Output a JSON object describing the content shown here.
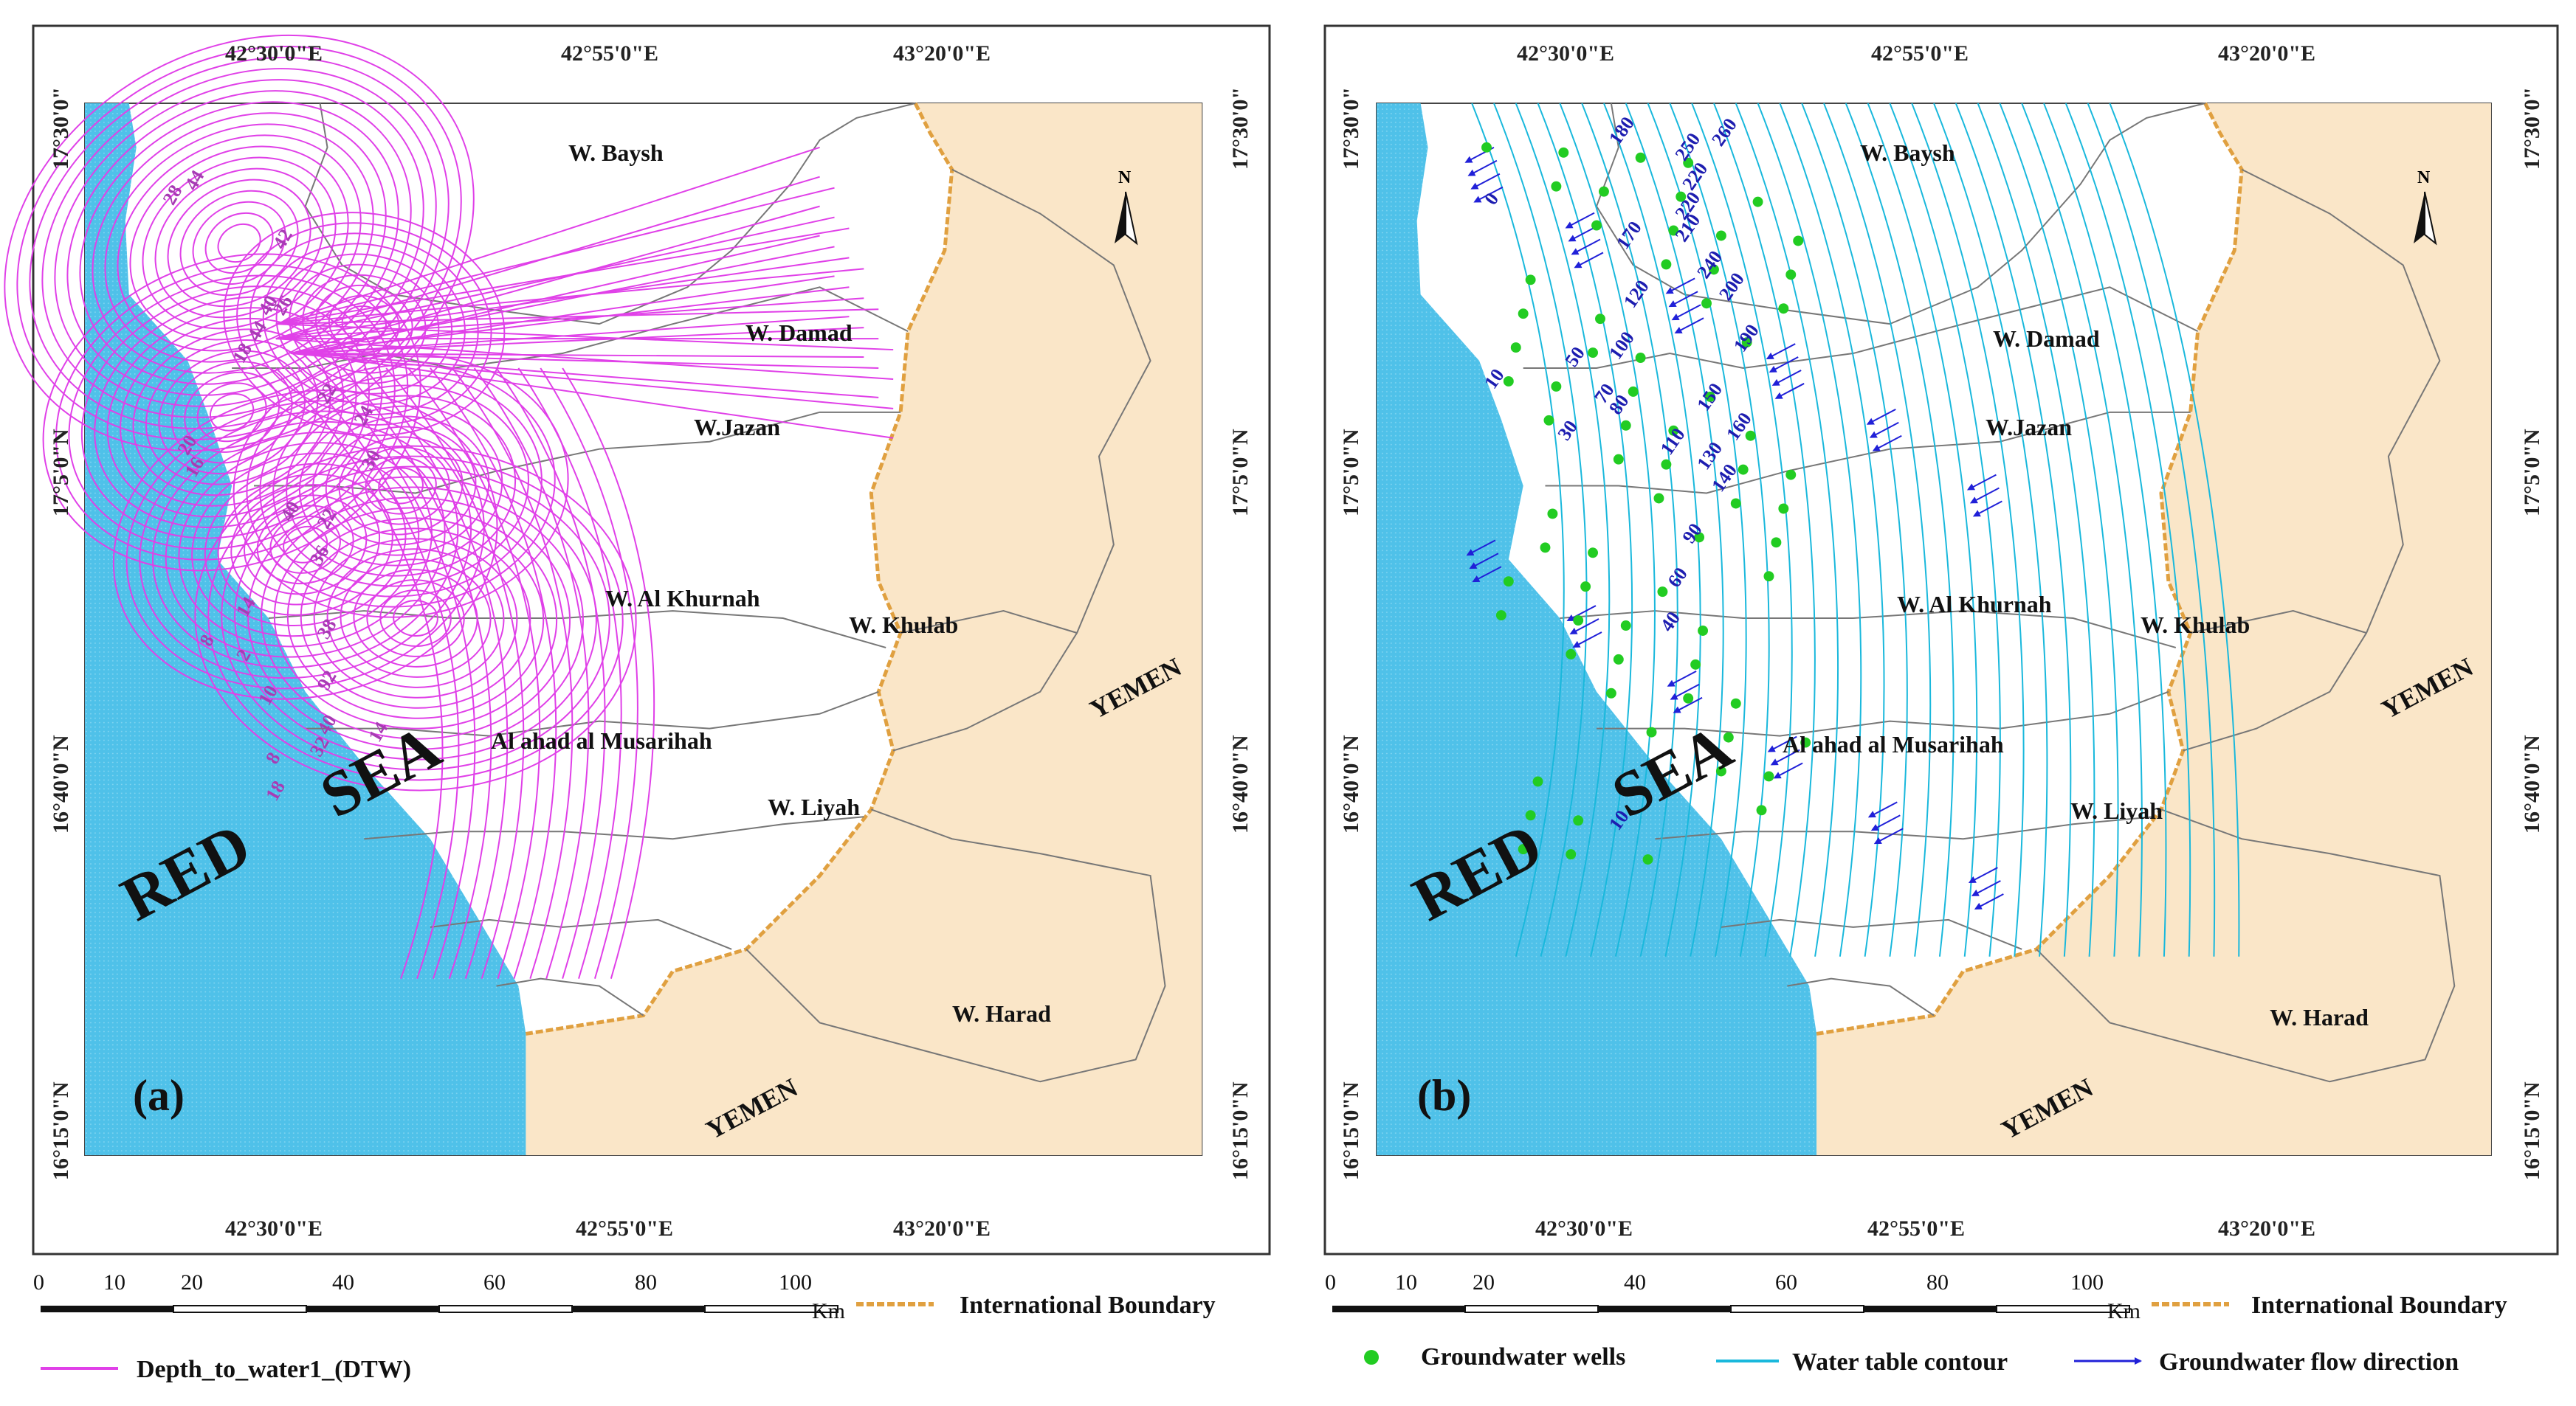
{
  "map": {
    "panels": [
      {
        "id": "a",
        "label": "(a)",
        "top_longitudes": [
          "42°30'0\"E",
          "42°55'0\"E",
          "43°20'0\"E"
        ],
        "bottom_longitudes": [
          "42°30'0\"E",
          "42°55'0\"E",
          "43°20'0\"E"
        ],
        "left_latitudes": [
          "17°30'0\"",
          "17°5'0\"N",
          "16°40'0\"N",
          "16°15'0\"N"
        ],
        "right_latitudes": [
          "17°30'0\"",
          "17°5'0\"N",
          "16°40'0\"N",
          "16°15'0\"N"
        ],
        "contour_labels": [
          "28",
          "44",
          "42",
          "26",
          "40",
          "44",
          "18",
          "22",
          "24",
          "20",
          "16",
          "30",
          "40",
          "22",
          "36",
          "8",
          "14",
          "2",
          "38",
          "92",
          "10",
          "40",
          "14",
          "32",
          "8",
          "18"
        ],
        "wadis": [
          "W. Baysh",
          "W. Damad",
          "W.Jazan",
          "W. Al Khurnah",
          "W. Khulab",
          "Al ahad al Musarihah",
          "W. Liyah",
          "W. Harad"
        ],
        "sea_words": [
          "RED",
          "SEA"
        ],
        "country": "YEMEN",
        "country_bottom": "YEMEN",
        "north_arrow": "N"
      },
      {
        "id": "b",
        "label": "(b)",
        "top_longitudes": [
          "42°30'0\"E",
          "42°55'0\"E",
          "43°20'0\"E"
        ],
        "bottom_longitudes": [
          "42°30'0\"E",
          "42°55'0\"E",
          "43°20'0\"E"
        ],
        "left_latitudes": [
          "17°30'0\"",
          "17°5'0\"N",
          "16°40'0\"N",
          "16°15'0\"N"
        ],
        "right_latitudes": [
          "17°30'0\"",
          "17°5'0\"N",
          "16°40'0\"N",
          "16°15'0\"N"
        ],
        "contour_labels": [
          "180",
          "250",
          "260",
          "220",
          "210",
          "220",
          "170",
          "120",
          "0",
          "240",
          "200",
          "100",
          "190",
          "10",
          "50",
          "70",
          "80",
          "150",
          "30",
          "160",
          "110",
          "130",
          "140",
          "90",
          "60",
          "40",
          "10"
        ],
        "wadis": [
          "W. Baysh",
          "W. Damad",
          "W.Jazan",
          "W. Al Khurnah",
          "W. Khulab",
          "Al ahad al Musarihah",
          "W. Liyah",
          "W. Harad"
        ],
        "sea_words": [
          "RED",
          "SEA"
        ],
        "country": "YEMEN",
        "country_bottom": "YEMEN",
        "north_arrow": "N"
      }
    ],
    "scale_bar": {
      "ticks": [
        "0",
        "10",
        "20",
        "40",
        "60",
        "80",
        "100"
      ],
      "unit": "Km"
    },
    "legend": {
      "boundary": "International Boundary",
      "dtw": "Depth_to_water1_(DTW)",
      "wells": "Groundwater wells",
      "contour": "Water table contour",
      "flow": "Groundwater flow direction"
    },
    "colors": {
      "sea": "#4fc1e9",
      "yemen": "#fae6c8",
      "dtw_contour": "#e040e8",
      "water_contour": "#19b8dc",
      "flow_arrow": "#2020d8",
      "well": "#22cc22",
      "boundary": "#e0a040"
    }
  }
}
